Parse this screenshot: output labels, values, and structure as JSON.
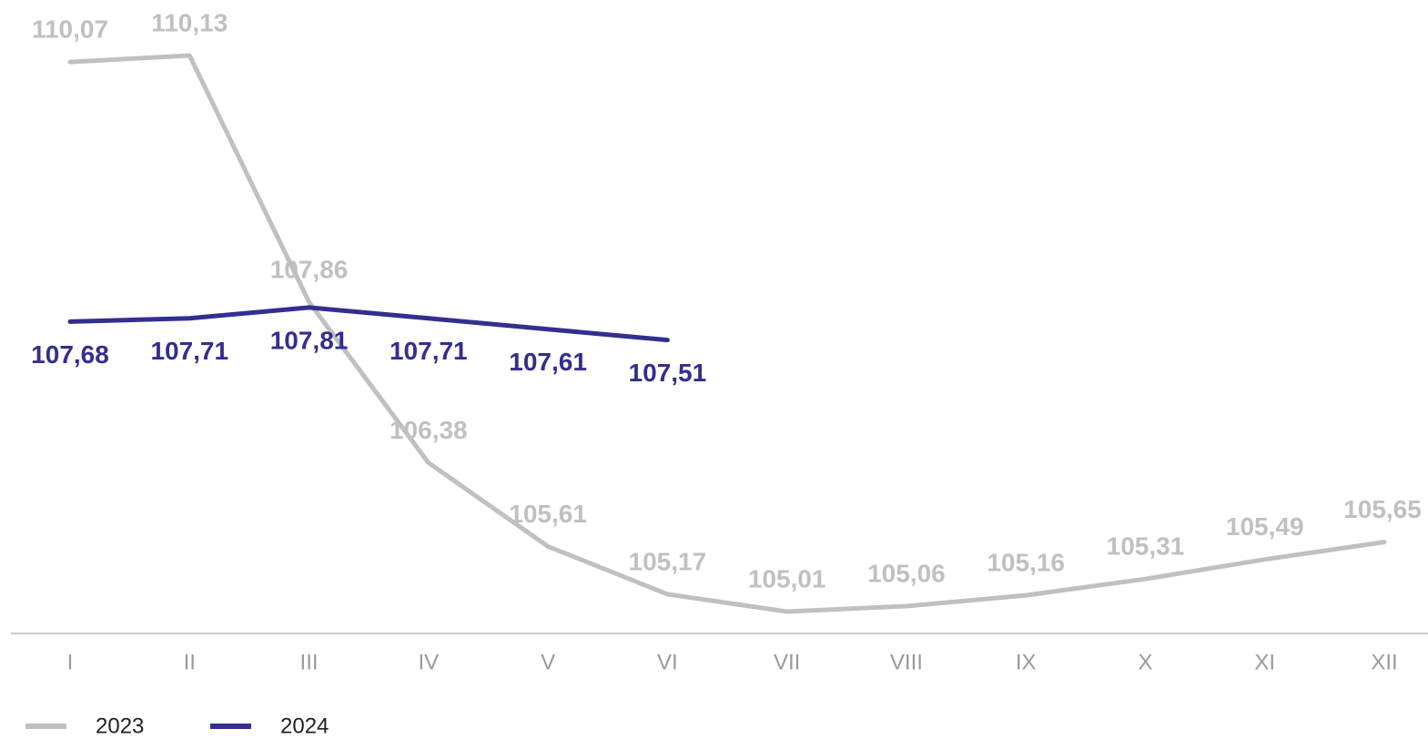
{
  "chart_data": {
    "type": "line",
    "categories": [
      "I",
      "II",
      "III",
      "IV",
      "V",
      "VI",
      "VII",
      "VIII",
      "IX",
      "X",
      "XI",
      "XII"
    ],
    "series": [
      {
        "name": "2023",
        "color": "#c0c0c0",
        "values": [
          110.07,
          110.13,
          107.86,
          106.38,
          105.61,
          105.17,
          105.01,
          105.06,
          105.16,
          105.31,
          105.49,
          105.65
        ],
        "value_labels": [
          "110,07",
          "110,13",
          "107,86",
          "106,38",
          "105,61",
          "105,17",
          "105,01",
          "105,06",
          "105,16",
          "105,31",
          "105,49",
          "105,65"
        ]
      },
      {
        "name": "2024",
        "color": "#332e8f",
        "values": [
          107.68,
          107.71,
          107.81,
          107.71,
          107.61,
          107.51,
          null,
          null,
          null,
          null,
          null,
          null
        ],
        "value_labels": [
          "107,68",
          "107,71",
          "107,81",
          "107,71",
          "107,61",
          "107,51",
          null,
          null,
          null,
          null,
          null,
          null
        ]
      }
    ],
    "legend": "bottom-left"
  }
}
